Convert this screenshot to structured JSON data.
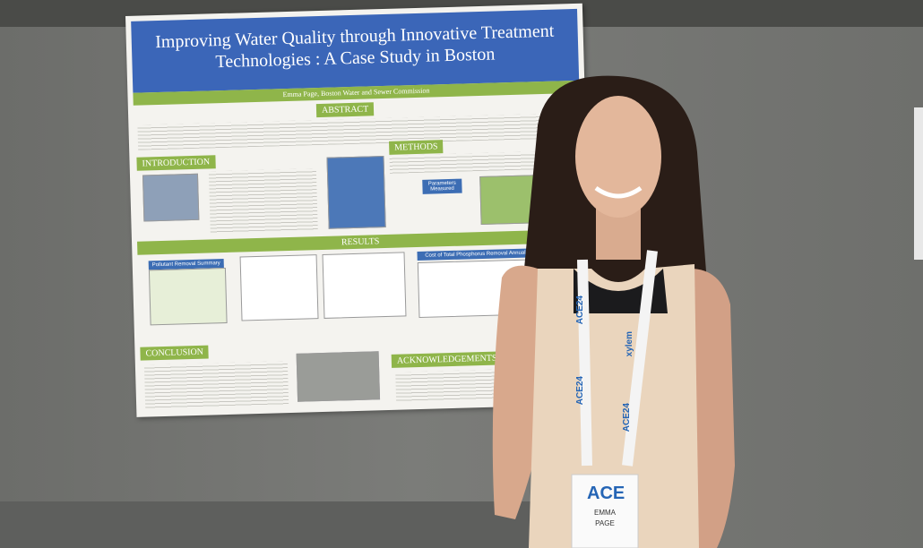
{
  "poster": {
    "title_lines": [
      "Improving Water Quality through Innovative Treatment",
      "Technologies : A Case Study in Boston"
    ],
    "author": "Emma Page, Boston Water and Sewer Commission",
    "sections": {
      "abstract": "ABSTRACT",
      "introduction": "INTRODUCTION",
      "methods": "METHODS",
      "results": "RESULTS",
      "conclusion": "CONCLUSION",
      "acknowledgements": "ACKNOWLEDGEMENTS"
    },
    "tables": {
      "pollutant": "Pollutant Removal Summary",
      "parameters": "Parameters Measured",
      "cost": "Cost of Total Phosphorus Removal Annually"
    }
  },
  "lanyard": {
    "event": "ACE24",
    "sponsor": "xylem"
  },
  "badge": {
    "logo": "ACE",
    "first_name": "EMMA",
    "last_name": "PAGE"
  }
}
